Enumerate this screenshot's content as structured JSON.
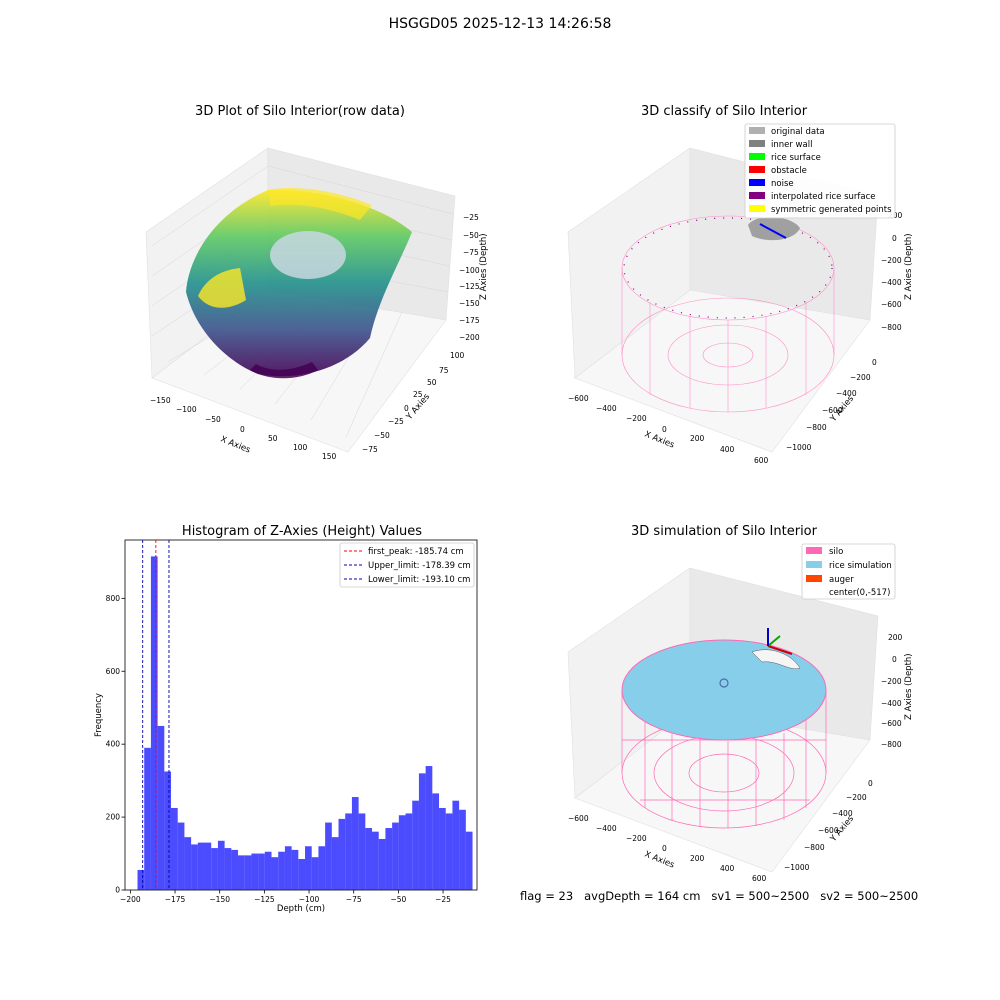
{
  "suptitle": "HSGGD05 2025-12-13 14:26:58",
  "panels": {
    "raw": {
      "title": "3D Plot of Silo Interior(row data)",
      "xlabel": "X Axies",
      "ylabel": "Y Axies",
      "zlabel": "Z Axies (Depth)",
      "xticks": [
        "−150",
        "−100",
        "−50",
        "0",
        "50",
        "100",
        "150"
      ],
      "yticks": [
        "−75",
        "−50",
        "−25",
        "0",
        "25",
        "50",
        "75",
        "100"
      ],
      "zticks": [
        "−25",
        "−50",
        "−75",
        "−100",
        "−125",
        "−150",
        "−175",
        "−200"
      ]
    },
    "classify": {
      "title": "3D classify of Silo Interior",
      "xlabel": "X Axies",
      "ylabel": "Y Axies",
      "zlabel": "Z Axies (Depth)",
      "xticks": [
        "−600",
        "−400",
        "−200",
        "0",
        "200",
        "400",
        "600"
      ],
      "yticks": [
        "−1000",
        "−800",
        "−600",
        "−400",
        "−200",
        "0"
      ],
      "zticks": [
        "200",
        "0",
        "−200",
        "−400",
        "−600",
        "−800"
      ],
      "legend": [
        {
          "label": "original data",
          "color": "#b0b0b0"
        },
        {
          "label": "inner wall",
          "color": "#808080"
        },
        {
          "label": "rice surface",
          "color": "#00ff00"
        },
        {
          "label": "obstacle",
          "color": "#ff0000"
        },
        {
          "label": "noise",
          "color": "#0000ff"
        },
        {
          "label": "interpolated rice surface",
          "color": "#800080"
        },
        {
          "label": "symmetric generated points",
          "color": "#ffff00"
        }
      ]
    },
    "sim": {
      "title": "3D simulation of Silo Interior",
      "xlabel": "X Axies",
      "ylabel": "Y Axies",
      "zlabel": "Z Axies (Depth)",
      "xticks": [
        "−600",
        "−400",
        "−200",
        "0",
        "200",
        "400",
        "600"
      ],
      "yticks": [
        "−1000",
        "−800",
        "−600",
        "−400",
        "−200",
        "0"
      ],
      "zticks": [
        "200",
        "0",
        "−200",
        "−400",
        "−600",
        "−800"
      ],
      "legend": [
        {
          "label": "silo",
          "color": "#ff69b4"
        },
        {
          "label": "rice simulation",
          "color": "#87ceeb"
        },
        {
          "label": "auger",
          "color": "#ff4500"
        },
        {
          "label": "center(0,-517)",
          "color": "none"
        }
      ]
    }
  },
  "chart_data": [
    {
      "type": "bar",
      "title": "Histogram of Z-Axies (Height) Values",
      "xlabel": "Depth (cm)",
      "ylabel": "Frequency",
      "xlim": [
        -203,
        -6
      ],
      "ylim": [
        0,
        960
      ],
      "xticks": [
        -200,
        -175,
        -150,
        -125,
        -100,
        -75,
        -50,
        -25
      ],
      "xticklabels": [
        "−200",
        "−175",
        "−150",
        "−125",
        "−100",
        "−75",
        "−50",
        "−25"
      ],
      "yticks": [
        0,
        200,
        400,
        600,
        800
      ],
      "bar_color": "#0000ff",
      "bin_start": -196,
      "bin_width": 3.75,
      "values": [
        55,
        390,
        915,
        450,
        325,
        225,
        185,
        145,
        125,
        130,
        130,
        115,
        135,
        115,
        110,
        95,
        95,
        100,
        100,
        105,
        90,
        105,
        120,
        110,
        85,
        120,
        90,
        120,
        185,
        145,
        195,
        210,
        255,
        210,
        170,
        160,
        140,
        170,
        185,
        205,
        210,
        245,
        320,
        340,
        265,
        225,
        210,
        245,
        220,
        160
      ],
      "vlines": [
        {
          "x": -185.74,
          "color": "#ff0000",
          "label": "first_peak: -185.74 cm"
        },
        {
          "x": -178.39,
          "color": "#0000aa",
          "label": "Upper_limit: -178.39 cm"
        },
        {
          "x": -193.1,
          "color": "#0000aa",
          "label": "Lower_limit: -193.10 cm"
        }
      ],
      "legend_position": "top-right"
    }
  ],
  "footer": "flag = 23   avgDepth = 164 cm   sv1 = 500~2500   sv2 = 500~2500"
}
